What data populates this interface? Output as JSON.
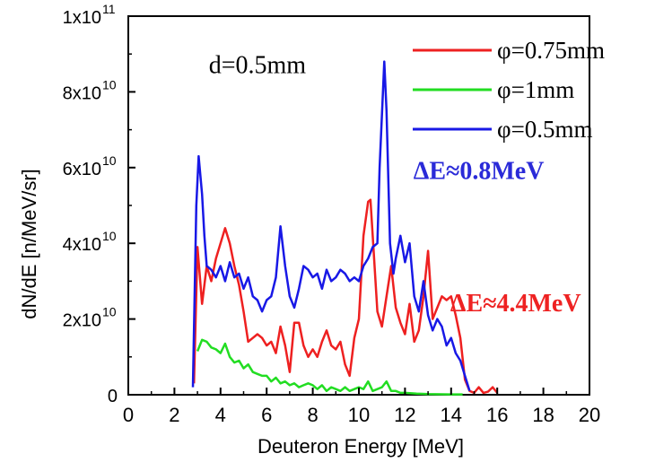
{
  "chart_data": {
    "type": "line",
    "xlabel": "Deuteron Energy [MeV]",
    "ylabel": "dN/dE [n/MeV/sr]",
    "xlim": [
      0,
      20
    ],
    "ylim": [
      0,
      100000000000.0
    ],
    "x_ticks": [
      "0",
      "2",
      "4",
      "6",
      "8",
      "10",
      "12",
      "14",
      "16",
      "18",
      "20"
    ],
    "y_ticks": [
      {
        "value": 0,
        "mantissa": "0",
        "exp": ""
      },
      {
        "value": 20000000000.0,
        "mantissa": "2x10",
        "exp": "10"
      },
      {
        "value": 40000000000.0,
        "mantissa": "4x10",
        "exp": "10"
      },
      {
        "value": 60000000000.0,
        "mantissa": "6x10",
        "exp": "10"
      },
      {
        "value": 80000000000.0,
        "mantissa": "8x10",
        "exp": "10"
      },
      {
        "value": 100000000000.0,
        "mantissa": "1x10",
        "exp": "11"
      }
    ],
    "grid": false,
    "legend_position": "top-right",
    "annotations": [
      {
        "text": "d=0.5mm",
        "x": 5.6,
        "y": 85000000000.0,
        "color": "#000000",
        "bold": false
      },
      {
        "text": "ΔE≈0.8MeV",
        "x": 15.2,
        "y": 57000000000.0,
        "color": "#2a2ad8",
        "bold": true
      },
      {
        "text": "ΔE≈4.4MeV",
        "x": 16.8,
        "y": 22000000000.0,
        "color": "#ee2222",
        "bold": true
      }
    ],
    "series": [
      {
        "name": "φ=0.75mm",
        "color": "#ee2020",
        "points": [
          [
            2.85,
            3000000000.0
          ],
          [
            3.0,
            39000000000.0
          ],
          [
            3.2,
            24000000000.0
          ],
          [
            3.4,
            34000000000.0
          ],
          [
            3.6,
            30000000000.0
          ],
          [
            3.8,
            36000000000.0
          ],
          [
            4.0,
            40000000000.0
          ],
          [
            4.2,
            44000000000.0
          ],
          [
            4.4,
            40000000000.0
          ],
          [
            4.6,
            34000000000.0
          ],
          [
            4.8,
            29000000000.0
          ],
          [
            5.0,
            22000000000.0
          ],
          [
            5.2,
            14000000000.0
          ],
          [
            5.4,
            15000000000.0
          ],
          [
            5.6,
            16000000000.0
          ],
          [
            5.8,
            15000000000.0
          ],
          [
            6.0,
            13000000000.0
          ],
          [
            6.2,
            14000000000.0
          ],
          [
            6.4,
            11000000000.0
          ],
          [
            6.6,
            18000000000.0
          ],
          [
            6.8,
            13000000000.0
          ],
          [
            7.0,
            6000000000.0
          ],
          [
            7.2,
            19000000000.0
          ],
          [
            7.4,
            19000000000.0
          ],
          [
            7.6,
            13000000000.0
          ],
          [
            7.8,
            10000000000.0
          ],
          [
            8.0,
            12000000000.0
          ],
          [
            8.2,
            10000000000.0
          ],
          [
            8.4,
            14000000000.0
          ],
          [
            8.6,
            17000000000.0
          ],
          [
            8.8,
            13000000000.0
          ],
          [
            9.0,
            12000000000.0
          ],
          [
            9.2,
            14000000000.0
          ],
          [
            9.4,
            8000000000.0
          ],
          [
            9.6,
            5000000000.0
          ],
          [
            9.8,
            15000000000.0
          ],
          [
            10.0,
            20000000000.0
          ],
          [
            10.2,
            42000000000.0
          ],
          [
            10.4,
            51000000000.0
          ],
          [
            10.5,
            51500000000.0
          ],
          [
            10.6,
            42000000000.0
          ],
          [
            10.8,
            22000000000.0
          ],
          [
            11.0,
            18000000000.0
          ],
          [
            11.2,
            26000000000.0
          ],
          [
            11.4,
            34000000000.0
          ],
          [
            11.6,
            23000000000.0
          ],
          [
            11.8,
            19000000000.0
          ],
          [
            12.0,
            16000000000.0
          ],
          [
            12.2,
            24000000000.0
          ],
          [
            12.4,
            14000000000.0
          ],
          [
            12.6,
            17000000000.0
          ],
          [
            12.8,
            26000000000.0
          ],
          [
            13.0,
            38000000000.0
          ],
          [
            13.2,
            20000000000.0
          ],
          [
            13.4,
            23000000000.0
          ],
          [
            13.6,
            26000000000.0
          ],
          [
            13.8,
            25000000000.0
          ],
          [
            14.0,
            26000000000.0
          ],
          [
            14.2,
            21000000000.0
          ],
          [
            14.4,
            15000000000.0
          ],
          [
            14.6,
            4000000000.0
          ],
          [
            14.8,
            1000000000.0
          ],
          [
            15.0,
            500000000.0
          ],
          [
            15.2,
            2000000000.0
          ],
          [
            15.4,
            500000000.0
          ],
          [
            15.6,
            800000000.0
          ],
          [
            15.8,
            2000000000.0
          ],
          [
            16.0,
            500000000.0
          ]
        ]
      },
      {
        "name": "φ=1mm",
        "color": "#22dd22",
        "points": [
          [
            3.0,
            11500000000.0
          ],
          [
            3.2,
            14500000000.0
          ],
          [
            3.4,
            14000000000.0
          ],
          [
            3.6,
            12500000000.0
          ],
          [
            3.8,
            12000000000.0
          ],
          [
            4.0,
            11000000000.0
          ],
          [
            4.2,
            13500000000.0
          ],
          [
            4.4,
            10000000000.0
          ],
          [
            4.6,
            8500000000.0
          ],
          [
            4.8,
            9000000000.0
          ],
          [
            5.0,
            7000000000.0
          ],
          [
            5.2,
            8000000000.0
          ],
          [
            5.4,
            6000000000.0
          ],
          [
            5.6,
            5500000000.0
          ],
          [
            5.8,
            5000000000.0
          ],
          [
            6.0,
            5000000000.0
          ],
          [
            6.2,
            3500000000.0
          ],
          [
            6.4,
            4500000000.0
          ],
          [
            6.6,
            3000000000.0
          ],
          [
            6.8,
            3500000000.0
          ],
          [
            7.0,
            2500000000.0
          ],
          [
            7.2,
            3000000000.0
          ],
          [
            7.4,
            2000000000.0
          ],
          [
            7.6,
            2500000000.0
          ],
          [
            7.8,
            3000000000.0
          ],
          [
            8.0,
            2500000000.0
          ],
          [
            8.2,
            1500000000.0
          ],
          [
            8.4,
            2500000000.0
          ],
          [
            8.6,
            1000000000.0
          ],
          [
            8.8,
            2000000000.0
          ],
          [
            9.0,
            1500000000.0
          ],
          [
            9.2,
            1000000000.0
          ],
          [
            9.4,
            2000000000.0
          ],
          [
            9.6,
            1000000000.0
          ],
          [
            9.8,
            1500000000.0
          ],
          [
            10.0,
            2000000000.0
          ],
          [
            10.2,
            1500000000.0
          ],
          [
            10.4,
            3500000000.0
          ],
          [
            10.6,
            1000000000.0
          ],
          [
            10.8,
            1500000000.0
          ],
          [
            11.0,
            2000000000.0
          ],
          [
            11.2,
            3500000000.0
          ],
          [
            11.4,
            1000000000.0
          ],
          [
            11.6,
            1000000000.0
          ],
          [
            11.8,
            500000000.0
          ],
          [
            12.0,
            500000000.0
          ],
          [
            12.5,
            300000000.0
          ],
          [
            13.0,
            200000000.0
          ],
          [
            14.0,
            100000000.0
          ],
          [
            14.5,
            100000000.0
          ]
        ]
      },
      {
        "name": "φ=0.5mm",
        "color": "#1818e6",
        "points": [
          [
            2.8,
            2000000000.0
          ],
          [
            2.95,
            50000000000.0
          ],
          [
            3.05,
            63000000000.0
          ],
          [
            3.2,
            53000000000.0
          ],
          [
            3.3,
            42000000000.0
          ],
          [
            3.4,
            34000000000.0
          ],
          [
            3.6,
            33000000000.0
          ],
          [
            3.8,
            31000000000.0
          ],
          [
            4.0,
            34000000000.0
          ],
          [
            4.2,
            30000000000.0
          ],
          [
            4.4,
            35000000000.0
          ],
          [
            4.6,
            31000000000.0
          ],
          [
            4.8,
            32000000000.0
          ],
          [
            5.0,
            28000000000.0
          ],
          [
            5.2,
            31000000000.0
          ],
          [
            5.4,
            26000000000.0
          ],
          [
            5.6,
            25000000000.0
          ],
          [
            5.8,
            22000000000.0
          ],
          [
            6.0,
            25000000000.0
          ],
          [
            6.2,
            26000000000.0
          ],
          [
            6.4,
            31000000000.0
          ],
          [
            6.6,
            44500000000.0
          ],
          [
            6.8,
            34000000000.0
          ],
          [
            7.0,
            26000000000.0
          ],
          [
            7.2,
            23000000000.0
          ],
          [
            7.4,
            28000000000.0
          ],
          [
            7.6,
            34000000000.0
          ],
          [
            7.8,
            33000000000.0
          ],
          [
            8.0,
            31000000000.0
          ],
          [
            8.2,
            32000000000.0
          ],
          [
            8.4,
            28000000000.0
          ],
          [
            8.6,
            33000000000.0
          ],
          [
            8.8,
            30000000000.0
          ],
          [
            9.0,
            31000000000.0
          ],
          [
            9.2,
            33000000000.0
          ],
          [
            9.4,
            32000000000.0
          ],
          [
            9.6,
            30000000000.0
          ],
          [
            9.8,
            31000000000.0
          ],
          [
            10.0,
            30000000000.0
          ],
          [
            10.2,
            34000000000.0
          ],
          [
            10.4,
            36000000000.0
          ],
          [
            10.6,
            39000000000.0
          ],
          [
            10.8,
            40000000000.0
          ],
          [
            10.9,
            60000000000.0
          ],
          [
            11.1,
            88000000000.0
          ],
          [
            11.2,
            75000000000.0
          ],
          [
            11.35,
            40000000000.0
          ],
          [
            11.5,
            32000000000.0
          ],
          [
            11.6,
            36000000000.0
          ],
          [
            11.8,
            42000000000.0
          ],
          [
            12.0,
            35000000000.0
          ],
          [
            12.2,
            40000000000.0
          ],
          [
            12.4,
            26000000000.0
          ],
          [
            12.6,
            22000000000.0
          ],
          [
            12.8,
            30000000000.0
          ],
          [
            13.0,
            21000000000.0
          ],
          [
            13.2,
            17000000000.0
          ],
          [
            13.4,
            20000000000.0
          ],
          [
            13.6,
            18000000000.0
          ],
          [
            13.8,
            13000000000.0
          ],
          [
            14.0,
            15000000000.0
          ],
          [
            14.2,
            11000000000.0
          ],
          [
            14.4,
            9000000000.0
          ],
          [
            14.6,
            5000000000.0
          ],
          [
            14.8,
            1000000000.0
          ]
        ]
      }
    ]
  }
}
